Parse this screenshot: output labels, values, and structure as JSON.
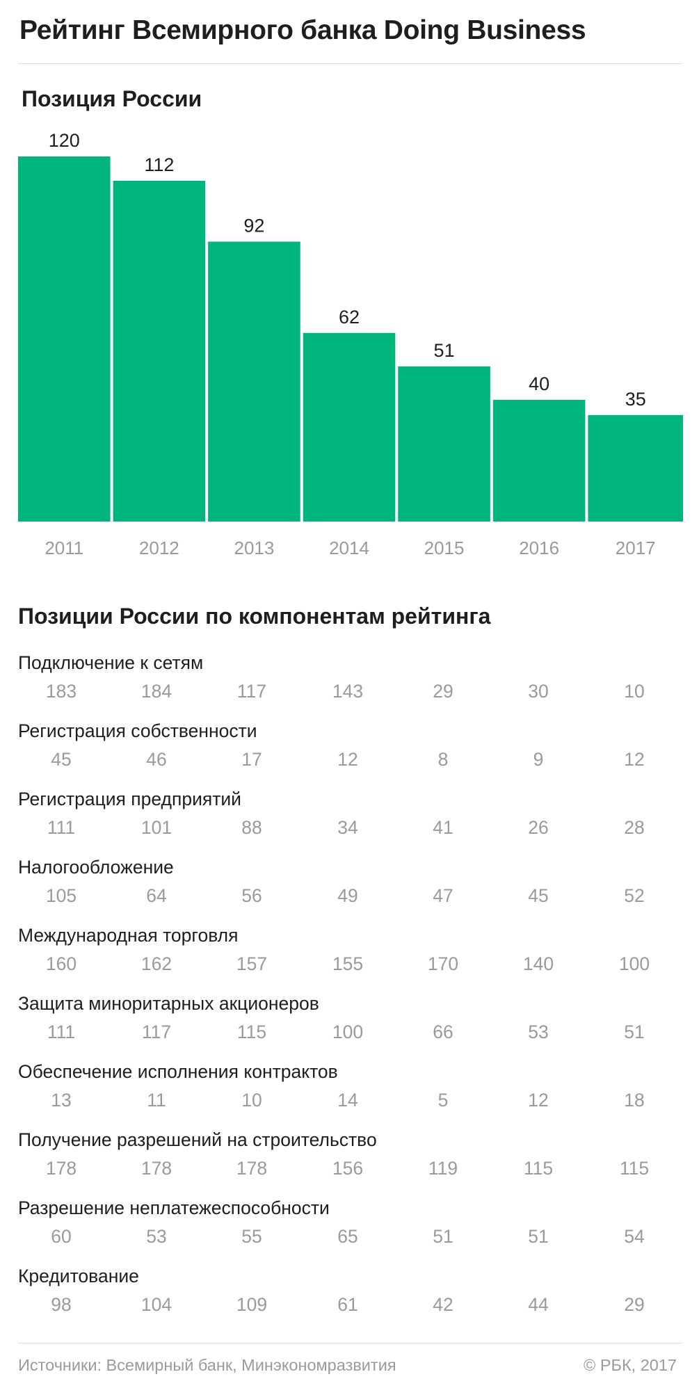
{
  "title": "Рейтинг Всемирного банка Doing Business",
  "subtitle_position": "Позиция России",
  "subtitle_components": "Позиции России по компонентам рейтинга",
  "colors": {
    "bar": "#00b57c",
    "muted": "#9a9a9a",
    "text": "#1e1e1e"
  },
  "chart_data": {
    "type": "bar",
    "title": "Позиция России",
    "categories": [
      "2011",
      "2012",
      "2013",
      "2014",
      "2015",
      "2016",
      "2017"
    ],
    "values": [
      120,
      112,
      92,
      62,
      51,
      40,
      35
    ],
    "ylim": [
      0,
      120
    ],
    "grid": false,
    "legend": "none"
  },
  "components": [
    {
      "label": "Подключение к сетям",
      "values": [
        "183",
        "184",
        "117",
        "143",
        "29",
        "30",
        "10"
      ]
    },
    {
      "label": "Регистрация собственности",
      "values": [
        "45",
        "46",
        "17",
        "12",
        "8",
        "9",
        "12"
      ]
    },
    {
      "label": "Регистрация предприятий",
      "values": [
        "111",
        "101",
        "88",
        "34",
        "41",
        "26",
        "28"
      ]
    },
    {
      "label": "Налогообложение",
      "values": [
        "105",
        "64",
        "56",
        "49",
        "47",
        "45",
        "52"
      ]
    },
    {
      "label": "Международная торговля",
      "values": [
        "160",
        "162",
        "157",
        "155",
        "170",
        "140",
        "100"
      ]
    },
    {
      "label": "Защита миноритарных акционеров",
      "values": [
        "111",
        "117",
        "115",
        "100",
        "66",
        "53",
        "51"
      ]
    },
    {
      "label": "Обеспечение исполнения контрактов",
      "values": [
        "13",
        "11",
        "10",
        "14",
        "5",
        "12",
        "18"
      ]
    },
    {
      "label": "Получение разрешений на строительство",
      "values": [
        "178",
        "178",
        "178",
        "156",
        "119",
        "115",
        "115"
      ]
    },
    {
      "label": "Разрешение неплатежеспособности",
      "values": [
        "60",
        "53",
        "55",
        "65",
        "51",
        "51",
        "54"
      ]
    },
    {
      "label": "Кредитование",
      "values": [
        "98",
        "104",
        "109",
        "61",
        "42",
        "44",
        "29"
      ]
    }
  ],
  "footer": {
    "source": "Источники: Всемирный банк, Минэкономразвития",
    "copyright": "© РБК, 2017"
  }
}
